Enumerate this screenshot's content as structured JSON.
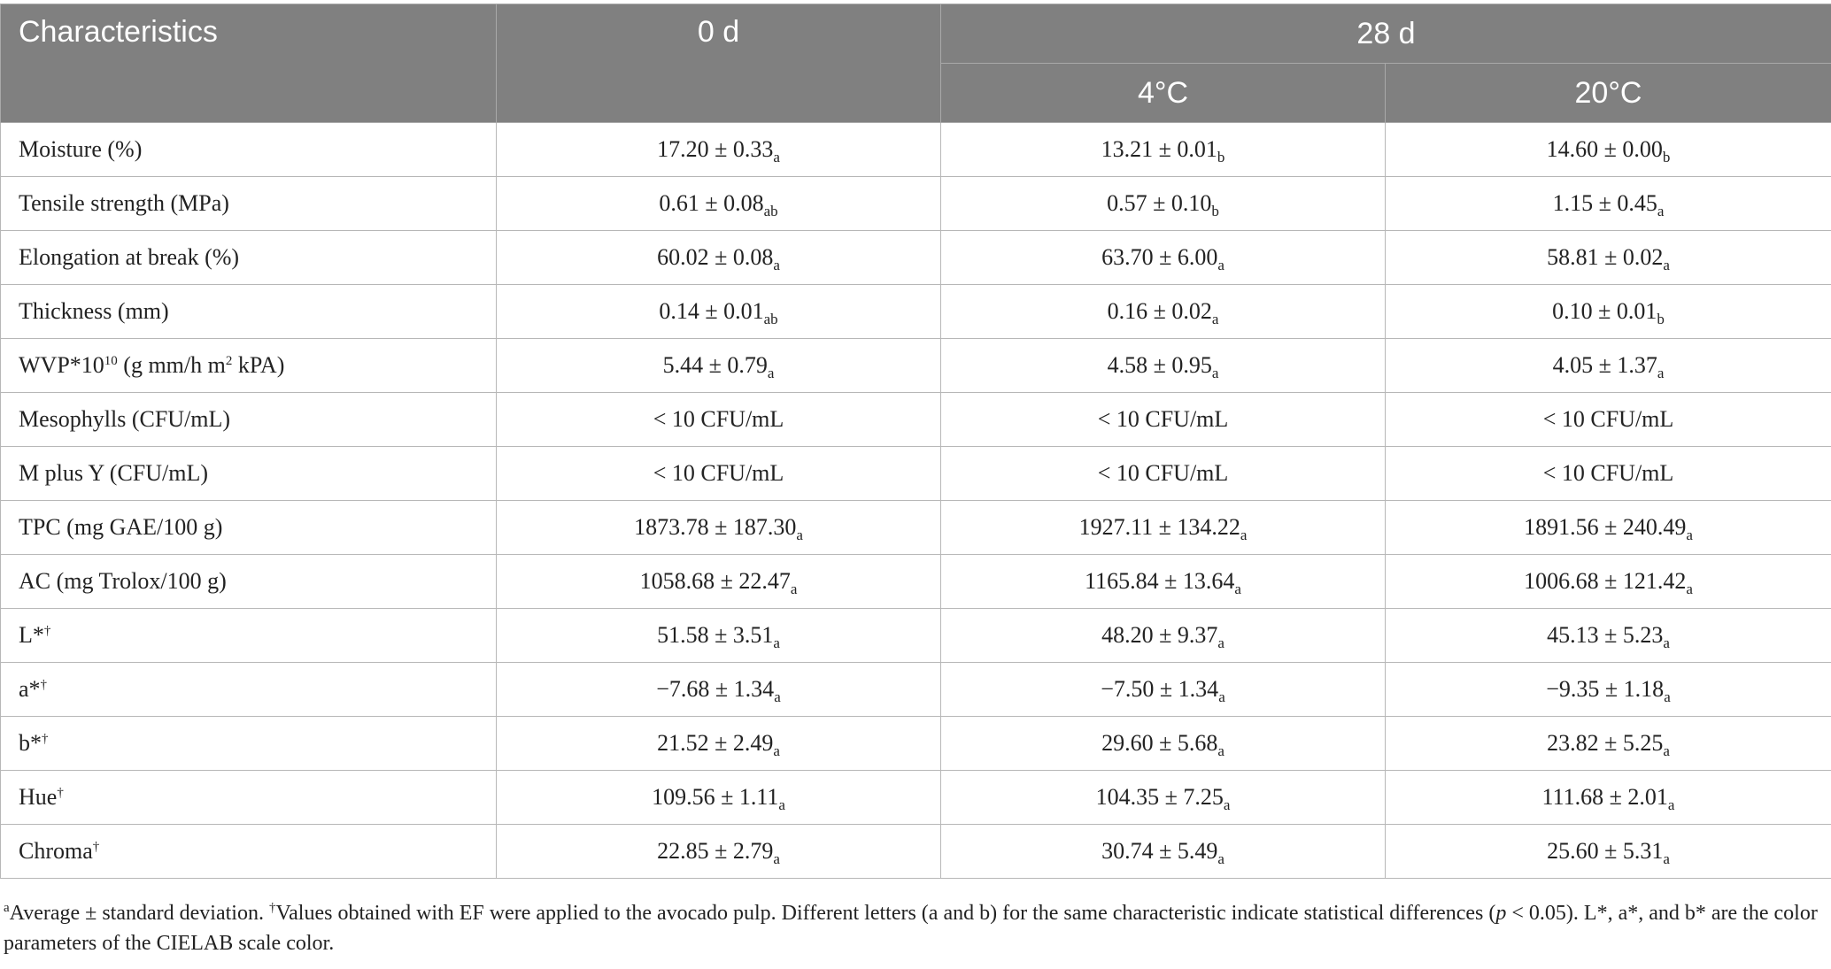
{
  "header": {
    "characteristics": "Characteristics",
    "day0": "0 d",
    "day28": "28 d",
    "temp_4": "4°C",
    "temp_20": "20°C"
  },
  "rows": [
    {
      "label": "Moisture (%)",
      "sup": "",
      "v0": "17.20 ± 0.33",
      "s0": "a",
      "v4": "13.21 ± 0.01",
      "s4": "b",
      "v20": "14.60 ± 0.00",
      "s20": "b"
    },
    {
      "label": "Tensile strength (MPa)",
      "sup": "",
      "v0": "0.61 ± 0.08",
      "s0": "ab",
      "v4": "0.57 ± 0.10",
      "s4": "b",
      "v20": "1.15 ± 0.45",
      "s20": "a"
    },
    {
      "label": "Elongation at break (%)",
      "sup": "",
      "v0": "60.02 ± 0.08",
      "s0": "a",
      "v4": "63.70 ± 6.00",
      "s4": "a",
      "v20": "58.81 ± 0.02",
      "s20": "a"
    },
    {
      "label": "Thickness (mm)",
      "sup": "",
      "v0": "0.14 ± 0.01",
      "s0": "ab",
      "v4": "0.16 ± 0.02",
      "s4": "a",
      "v20": "0.10 ± 0.01",
      "s20": "b"
    },
    {
      "label_pre": "WVP*10",
      "label_sup": "10",
      "label_mid": " (g mm/h m",
      "label_sup2": "2",
      "label_post": " kPA)",
      "v0": "5.44 ± 0.79",
      "s0": "a",
      "v4": "4.58 ± 0.95",
      "s4": "a",
      "v20": "4.05 ± 1.37",
      "s20": "a"
    },
    {
      "label": "Mesophylls (CFU/mL)",
      "sup": "",
      "v0": "< 10 CFU/mL",
      "s0": "",
      "v4": "< 10 CFU/mL",
      "s4": "",
      "v20": "< 10 CFU/mL",
      "s20": ""
    },
    {
      "label": "M plus Y (CFU/mL)",
      "sup": "",
      "v0": "< 10 CFU/mL",
      "s0": "",
      "v4": "< 10 CFU/mL",
      "s4": "",
      "v20": "< 10 CFU/mL",
      "s20": ""
    },
    {
      "label": "TPC (mg GAE/100 g)",
      "sup": "",
      "v0": "1873.78 ± 187.30",
      "s0": "a",
      "v4": "1927.11 ± 134.22",
      "s4": "a",
      "v20": "1891.56 ± 240.49",
      "s20": "a"
    },
    {
      "label": "AC (mg Trolox/100 g)",
      "sup": "",
      "v0": "1058.68 ± 22.47",
      "s0": "a",
      "v4": "1165.84 ± 13.64",
      "s4": "a",
      "v20": "1006.68 ± 121.42",
      "s20": "a"
    },
    {
      "label": "L*",
      "sup": "†",
      "v0": "51.58 ± 3.51",
      "s0": "a",
      "v4": "48.20 ± 9.37",
      "s4": "a",
      "v20": "45.13 ± 5.23",
      "s20": "a"
    },
    {
      "label": "a*",
      "sup": "†",
      "v0": "−7.68 ± 1.34",
      "s0": "a",
      "v4": "−7.50 ± 1.34",
      "s4": "a",
      "v20": "−9.35 ± 1.18",
      "s20": "a"
    },
    {
      "label": "b*",
      "sup": "†",
      "v0": "21.52 ± 2.49",
      "s0": "a",
      "v4": "29.60 ± 5.68",
      "s4": "a",
      "v20": "23.82 ± 5.25",
      "s20": "a"
    },
    {
      "label": "Hue",
      "sup": "†",
      "v0": "109.56 ± 1.11",
      "s0": "a",
      "v4": "104.35 ± 7.25",
      "s4": "a",
      "v20": "111.68 ± 2.01",
      "s20": "a"
    },
    {
      "label": "Chroma",
      "sup": "†",
      "v0": "22.85 ± 2.79",
      "s0": "a",
      "v4": "30.74 ± 5.49",
      "s4": "a",
      "v20": "25.60 ± 5.31",
      "s20": "a"
    }
  ],
  "footnote": {
    "mark_a": "a",
    "text1": "Average ± standard deviation. ",
    "mark_dagger": "†",
    "text2": "Values obtained with EF were applied to the avocado pulp. Different letters (a and b) for the same characteristic indicate statistical differences (",
    "p_var": "p",
    "text3": " < 0.05). L*, a*, and b* are the color parameters of the CIELAB scale color."
  },
  "colors": {
    "header_bg": "#808080",
    "header_text": "#ffffff",
    "border": "#b7b7b7"
  }
}
